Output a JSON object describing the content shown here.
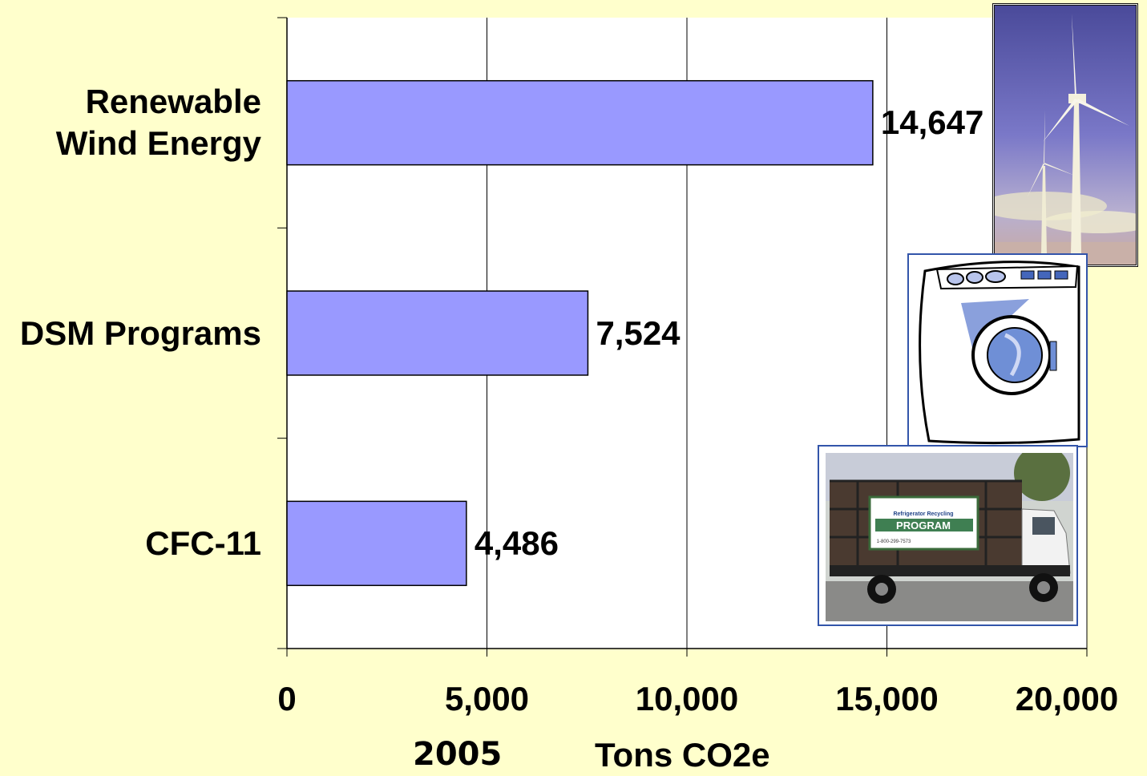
{
  "chart_data": {
    "type": "bar",
    "orientation": "horizontal",
    "categories": [
      "Renewable\nWind Energy",
      "DSM Programs",
      "CFC-11"
    ],
    "values": [
      14647,
      7524,
      4486
    ],
    "value_labels": [
      "14,647",
      "7,524",
      "4,486"
    ],
    "xticks": [
      0,
      5000,
      10000,
      15000,
      20000
    ],
    "xtick_labels": [
      "0",
      "5,000",
      "10,000",
      "15,000",
      "20,000"
    ],
    "xlim": [
      0,
      20000
    ],
    "grid": true,
    "bar_color": "#9999ff",
    "footer_year": "2005",
    "xlabel": "Tons CO2e"
  },
  "pictures": [
    {
      "name": "wind-turbine-photo"
    },
    {
      "name": "washing-machine-clipart"
    },
    {
      "name": "recycling-truck-photo",
      "sign_title": "Refrigerator Recycling",
      "sign_text": "PROGRAM",
      "sign_phone": "1-800-299-7573"
    }
  ],
  "colors": {
    "background": "#ffffcc",
    "plot": "#ffffff",
    "bar": "#9999ff"
  }
}
